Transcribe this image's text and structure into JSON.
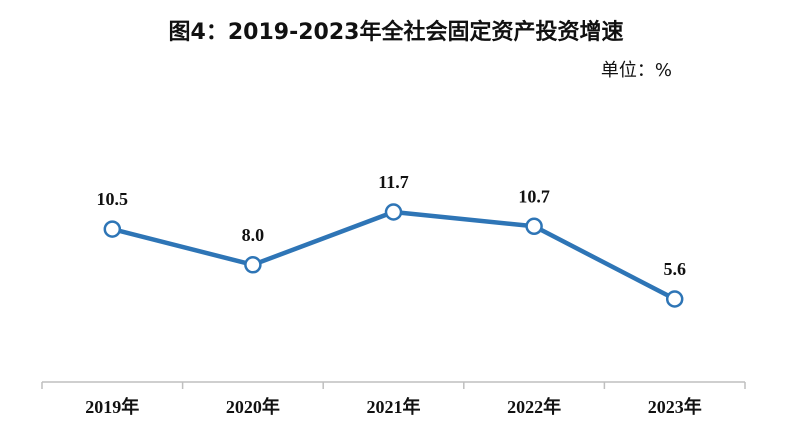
{
  "chart_data": {
    "type": "line",
    "title": "图4：2019-2023年全社会固定资产投资增速",
    "unit_label": "单位：%",
    "categories": [
      "2019年",
      "2020年",
      "2021年",
      "2022年",
      "2023年"
    ],
    "series": [
      {
        "values": [
          10.5,
          8.0,
          11.7,
          10.7,
          5.6
        ],
        "labels": [
          "10.5",
          "8.0",
          "11.7",
          "10.7",
          "5.6"
        ]
      }
    ],
    "grid": false,
    "legend": "none"
  },
  "colors": {
    "line": "#2E75B6",
    "marker_fill": "#ffffff",
    "axis": "#BFBFBF",
    "text": "#111111"
  }
}
